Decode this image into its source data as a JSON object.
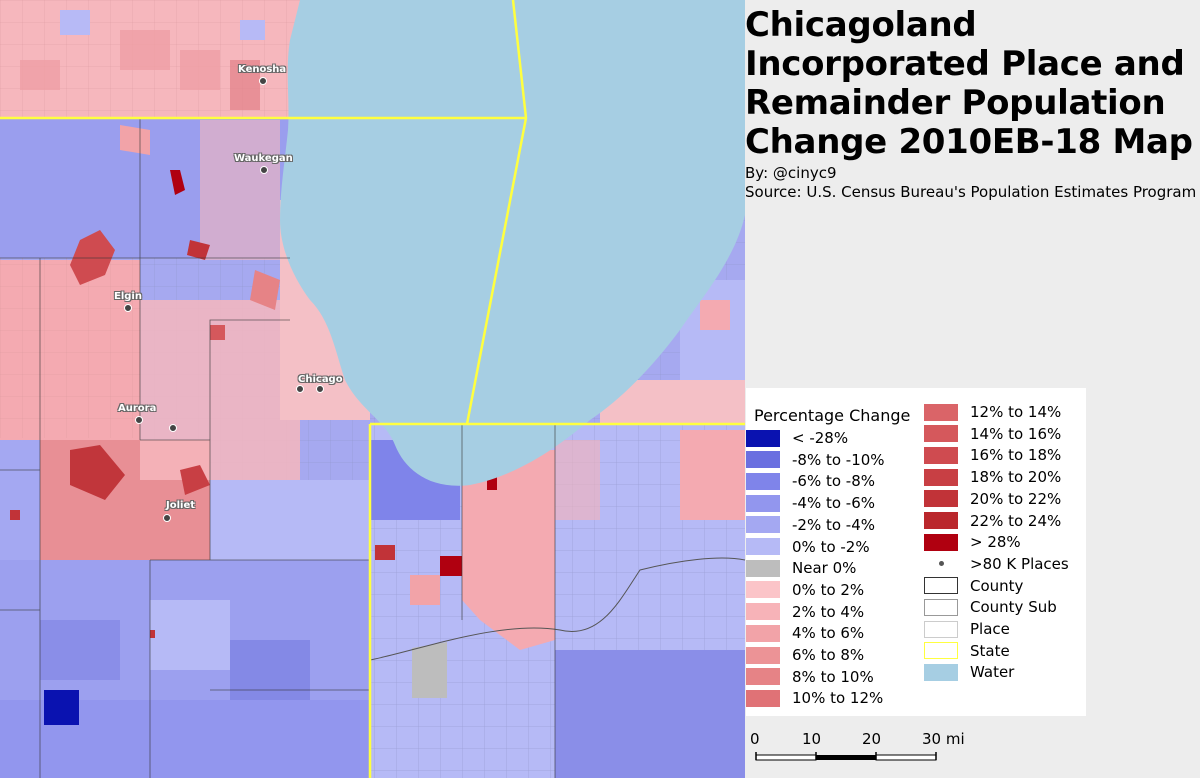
{
  "map": {
    "water_color": "#a6cee3",
    "state_line_color": "#ffff40",
    "places": [
      {
        "name": "Kenosha"
      },
      {
        "name": "Waukegan"
      },
      {
        "name": "Elgin"
      },
      {
        "name": "Chicago"
      },
      {
        "name": "Aurora"
      },
      {
        "name": "Joliet"
      }
    ]
  },
  "title": "Chicagoland Incorporated Place and Remainder Population Change 2010EB-18 Map",
  "byline": "By: @cinyc9",
  "source": "Source: U.S. Census Bureau's Population Estimates Program",
  "legend": {
    "title": "Percentage Change",
    "column1": [
      {
        "label": "< -28%",
        "color": "#0a12b0"
      },
      {
        "label": "-8% to -10%",
        "color": "#6a6fe0"
      },
      {
        "label": "-6% to -8%",
        "color": "#7f84ea"
      },
      {
        "label": "-4% to -6%",
        "color": "#9296ee"
      },
      {
        "label": "-2% to -4%",
        "color": "#a4a8f2"
      },
      {
        "label": "0% to -2%",
        "color": "#b6baf6"
      },
      {
        "label": "Near 0%",
        "color": "#bdbdbd"
      },
      {
        "label": "0% to 2%",
        "color": "#fbc4c8"
      },
      {
        "label": "2% to 4%",
        "color": "#f7b3b8"
      },
      {
        "label": "4% to 6%",
        "color": "#f2a3a8"
      },
      {
        "label": "6% to 8%",
        "color": "#ec9396"
      },
      {
        "label": "8% to 10%",
        "color": "#e68386"
      },
      {
        "label": "10% to 12%",
        "color": "#e07276"
      }
    ],
    "column2": [
      {
        "label": "12% to 14%",
        "color": "#da6468"
      },
      {
        "label": "14% to 16%",
        "color": "#d5585c"
      },
      {
        "label": "16% to 18%",
        "color": "#cf4b50"
      },
      {
        "label": "18% to 20%",
        "color": "#c83f44"
      },
      {
        "label": "20% to 22%",
        "color": "#c13338"
      },
      {
        "label": "22% to 24%",
        "color": "#ba272c"
      },
      {
        "label": "> 28%",
        "color": "#b00010"
      },
      {
        "label": ">80 K Places",
        "symbol": "dot"
      },
      {
        "label": "County",
        "symbol": "outline",
        "color": "#333333"
      },
      {
        "label": "County Sub",
        "symbol": "outline",
        "color": "#999999"
      },
      {
        "label": "Place",
        "symbol": "outline",
        "color": "#cccccc"
      },
      {
        "label": "State",
        "symbol": "outline",
        "color": "#ffff40"
      },
      {
        "label": "Water",
        "color": "#a6cee3"
      }
    ]
  },
  "scale": {
    "ticks": [
      "0",
      "10",
      "20"
    ],
    "end_label": "30 mi"
  }
}
